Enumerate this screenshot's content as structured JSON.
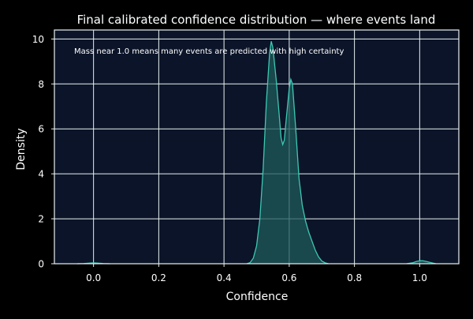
{
  "colors": {
    "figure_background": "#000000",
    "plot_background": "#0b1428",
    "grid": "#e8f1f2",
    "curve_line": "#3cc8b4",
    "curve_fill": "#1f5a5a",
    "text": "#ffffff"
  },
  "chart_data": {
    "type": "area",
    "title": "Final calibrated confidence distribution — where events land",
    "annotation": "Mass near 1.0 means many events are predicted with high certainty",
    "xlabel": "Confidence",
    "ylabel": "Density",
    "xlim": [
      -0.12,
      1.12
    ],
    "ylim": [
      0,
      10.4
    ],
    "xticks": [
      0.0,
      0.2,
      0.4,
      0.6,
      0.8,
      1.0
    ],
    "xtick_labels": [
      "0.0",
      "0.2",
      "0.4",
      "0.6",
      "0.8",
      "1.0"
    ],
    "yticks": [
      0,
      2,
      4,
      6,
      8,
      10
    ],
    "ytick_labels": [
      "0",
      "2",
      "4",
      "6",
      "8",
      "10"
    ],
    "grid": true,
    "series": [
      {
        "points": [
          [
            -0.05,
            0.0
          ],
          [
            -0.03,
            0.01
          ],
          [
            -0.01,
            0.03
          ],
          [
            0.0,
            0.04
          ],
          [
            0.01,
            0.03
          ],
          [
            0.03,
            0.01
          ],
          [
            0.05,
            0.0
          ],
          [
            0.47,
            0.0
          ],
          [
            0.48,
            0.05
          ],
          [
            0.49,
            0.25
          ],
          [
            0.5,
            0.8
          ],
          [
            0.51,
            2.0
          ],
          [
            0.52,
            4.2
          ],
          [
            0.53,
            7.2
          ],
          [
            0.54,
            9.4
          ],
          [
            0.545,
            9.9
          ],
          [
            0.55,
            9.6
          ],
          [
            0.56,
            8.2
          ],
          [
            0.57,
            6.5
          ],
          [
            0.575,
            5.6
          ],
          [
            0.58,
            5.3
          ],
          [
            0.585,
            5.5
          ],
          [
            0.59,
            6.3
          ],
          [
            0.6,
            7.8
          ],
          [
            0.605,
            8.2
          ],
          [
            0.61,
            8.0
          ],
          [
            0.62,
            6.0
          ],
          [
            0.63,
            3.8
          ],
          [
            0.64,
            2.6
          ],
          [
            0.65,
            1.9
          ],
          [
            0.66,
            1.4
          ],
          [
            0.67,
            1.0
          ],
          [
            0.68,
            0.6
          ],
          [
            0.69,
            0.3
          ],
          [
            0.7,
            0.12
          ],
          [
            0.71,
            0.04
          ],
          [
            0.72,
            0.0
          ],
          [
            0.96,
            0.0
          ],
          [
            0.98,
            0.05
          ],
          [
            0.99,
            0.1
          ],
          [
            1.0,
            0.13
          ],
          [
            1.01,
            0.13
          ],
          [
            1.02,
            0.1
          ],
          [
            1.04,
            0.03
          ],
          [
            1.05,
            0.0
          ]
        ]
      }
    ]
  }
}
